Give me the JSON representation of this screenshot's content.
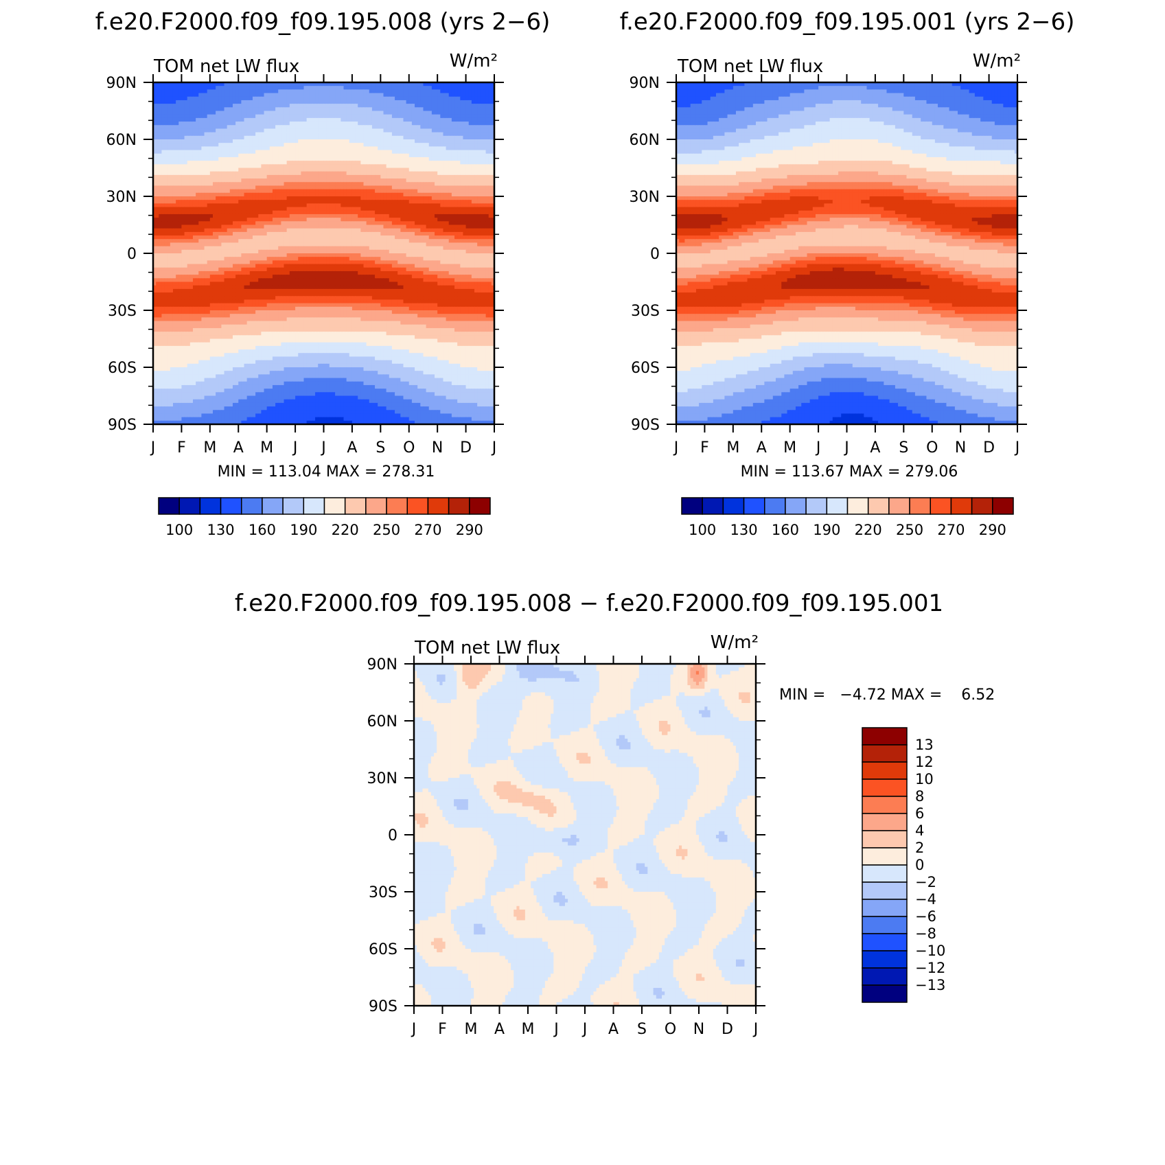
{
  "colors": {
    "abs_scale": [
      "#00007f",
      "#0018b3",
      "#0033dd",
      "#1f52ff",
      "#4c7bf2",
      "#85a6f7",
      "#b3c9f9",
      "#d7e7fc",
      "#fdeddd",
      "#fdc9af",
      "#fca78a",
      "#fc7d53",
      "#fb5323",
      "#e03a0a",
      "#b42208",
      "#8d0000"
    ],
    "diff_scale": [
      "#00007f",
      "#0018b3",
      "#0033dd",
      "#1f52ff",
      "#4c7bf2",
      "#85a6f7",
      "#b3c9f9",
      "#d7e7fc",
      "#fdeddd",
      "#fdc9af",
      "#fca78a",
      "#fc7d53",
      "#fb5323",
      "#e03a0a",
      "#b42208",
      "#8d0000"
    ]
  },
  "icons": [],
  "chart_data": [
    {
      "type": "heatmap",
      "title": "f.e20.F2000.f09_f09.195.008 (yrs 2−6)",
      "left_label": "TOM net LW flux",
      "right_label": "W/m²",
      "x_ticks": [
        "J",
        "F",
        "M",
        "A",
        "M",
        "J",
        "J",
        "A",
        "S",
        "O",
        "N",
        "D",
        "J"
      ],
      "y_ticks": [
        "90N",
        "60N",
        "30N",
        "0",
        "30S",
        "60S",
        "90S"
      ],
      "ylim": [
        -90,
        90
      ],
      "stats": "MIN = 113.04 MAX = 278.31",
      "min": 113.04,
      "max": 278.31,
      "colorbar_labels": [
        "100",
        "130",
        "160",
        "190",
        "220",
        "250",
        "270",
        "290"
      ],
      "colorbar_levels": [
        100,
        115,
        130,
        145,
        160,
        175,
        190,
        205,
        220,
        235,
        250,
        260,
        270,
        280,
        290
      ]
    },
    {
      "type": "heatmap",
      "title": "f.e20.F2000.f09_f09.195.001 (yrs 2−6)",
      "left_label": "TOM net LW flux",
      "right_label": "W/m²",
      "x_ticks": [
        "J",
        "F",
        "M",
        "A",
        "M",
        "J",
        "J",
        "A",
        "S",
        "O",
        "N",
        "D",
        "J"
      ],
      "y_ticks": [
        "90N",
        "60N",
        "30N",
        "0",
        "30S",
        "60S",
        "90S"
      ],
      "ylim": [
        -90,
        90
      ],
      "stats": "MIN = 113.67 MAX = 279.06",
      "min": 113.67,
      "max": 279.06,
      "colorbar_labels": [
        "100",
        "130",
        "160",
        "190",
        "220",
        "250",
        "270",
        "290"
      ],
      "colorbar_levels": [
        100,
        115,
        130,
        145,
        160,
        175,
        190,
        205,
        220,
        235,
        250,
        260,
        270,
        280,
        290
      ]
    },
    {
      "type": "heatmap",
      "title": "f.e20.F2000.f09_f09.195.008 − f.e20.F2000.f09_f09.195.001",
      "left_label": "TOM net LW flux",
      "right_label": "W/m²",
      "x_ticks": [
        "J",
        "F",
        "M",
        "A",
        "M",
        "J",
        "J",
        "A",
        "S",
        "O",
        "N",
        "D",
        "J"
      ],
      "y_ticks": [
        "90N",
        "60N",
        "30N",
        "0",
        "30S",
        "60S",
        "90S"
      ],
      "ylim": [
        -90,
        90
      ],
      "stats": "MIN =   −4.72 MAX =    6.52",
      "min": -4.72,
      "max": 6.52,
      "colorbar_labels": [
        "13",
        "12",
        "10",
        "8",
        "6",
        "4",
        "2",
        "0",
        "−2",
        "−4",
        "−6",
        "−8",
        "−10",
        "−12",
        "−13"
      ],
      "colorbar_levels": [
        -13,
        -12,
        -10,
        -8,
        -6,
        -4,
        -2,
        0,
        2,
        4,
        6,
        8,
        10,
        12,
        13
      ]
    }
  ]
}
